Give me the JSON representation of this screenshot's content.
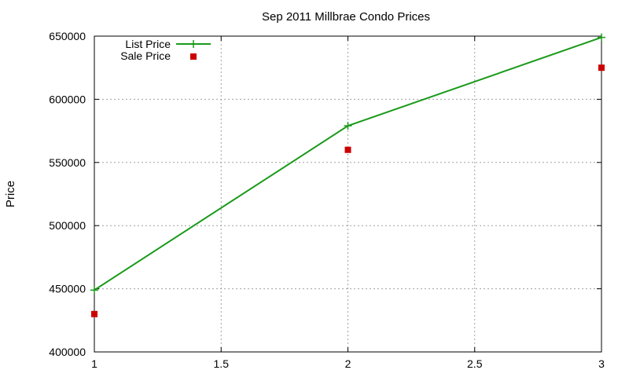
{
  "chart_data": {
    "type": "line",
    "title": "Sep 2011 Millbrae Condo Prices",
    "xlabel": "",
    "ylabel": "Price",
    "xlim": [
      1,
      3
    ],
    "ylim": [
      400000,
      650000
    ],
    "x_ticks": [
      "1",
      "1.5",
      "2",
      "2.5",
      "3"
    ],
    "x_tick_values": [
      1,
      1.5,
      2,
      2.5,
      3
    ],
    "y_ticks": [
      "400000",
      "450000",
      "500000",
      "550000",
      "600000",
      "650000"
    ],
    "y_tick_values": [
      400000,
      450000,
      500000,
      550000,
      600000,
      650000
    ],
    "grid": true,
    "legend_position": "top-left",
    "series": [
      {
        "name": "List Price",
        "style": "line+cross",
        "color": "#1a9a1a",
        "x": [
          1,
          2,
          3
        ],
        "values": [
          449000,
          579000,
          649000
        ]
      },
      {
        "name": "Sale Price",
        "style": "square",
        "color": "#cc0000",
        "x": [
          1,
          2,
          3
        ],
        "values": [
          430000,
          560000,
          625000
        ]
      }
    ]
  }
}
